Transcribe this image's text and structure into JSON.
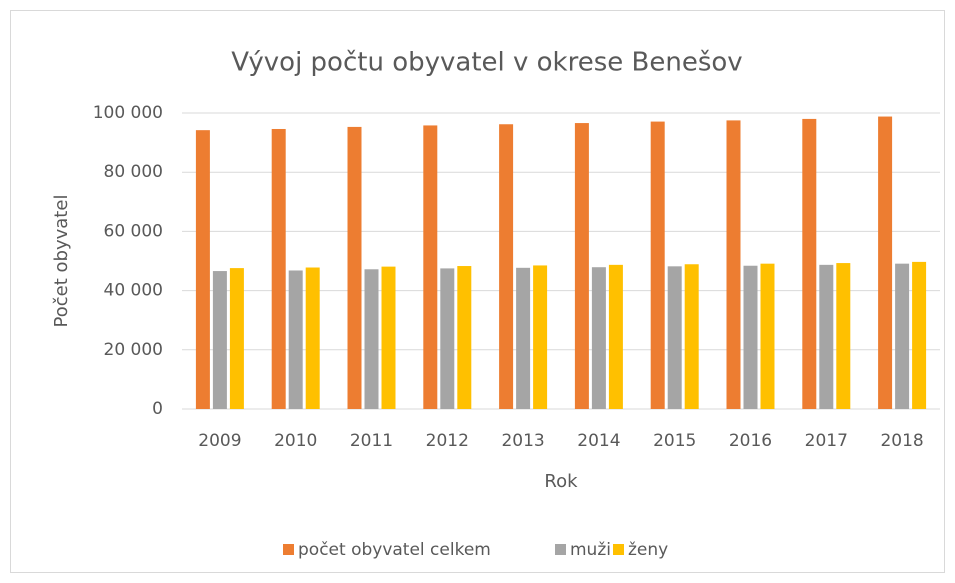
{
  "chart_data": {
    "type": "bar",
    "title": "Vývoj počtu obyvatel v okrese Benešov",
    "x_label": "Rok",
    "y_label": "Počet obyvatel",
    "categories": [
      "2009",
      "2010",
      "2011",
      "2012",
      "2013",
      "2014",
      "2015",
      "2016",
      "2017",
      "2018"
    ],
    "series": [
      {
        "name": "počet obyvatel celkem",
        "color": "#ed7d31",
        "values": [
          94200,
          94600,
          95300,
          95800,
          96200,
          96600,
          97100,
          97500,
          98000,
          98800
        ]
      },
      {
        "name": "muži",
        "color": "#a5a5a5",
        "values": [
          46600,
          46800,
          47200,
          47500,
          47700,
          47900,
          48200,
          48400,
          48700,
          49100
        ]
      },
      {
        "name": "ženy",
        "color": "#ffc000",
        "values": [
          47600,
          47800,
          48100,
          48300,
          48500,
          48700,
          48900,
          49100,
          49300,
          49700
        ]
      }
    ],
    "ylim": [
      0,
      100000
    ],
    "yticks": [
      0,
      {
        "value": 20000,
        "label": "20 000"
      },
      {
        "value": 40000,
        "label": "40 000"
      },
      {
        "value": 60000,
        "label": "60 000"
      },
      {
        "value": 80000,
        "label": "80 000"
      },
      {
        "value": 100000,
        "label": "100 000"
      }
    ],
    "grid": true,
    "legend": "bottom"
  }
}
